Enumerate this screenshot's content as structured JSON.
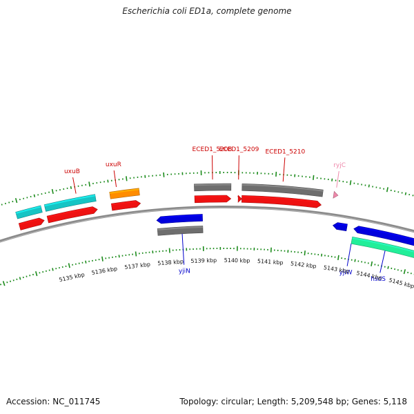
{
  "title": "Escherichia coli ED1a, complete genome",
  "footer": {
    "accession": "Accession: NC_011745",
    "summary": "Topology: circular; Length: 5,209,548 bp; Genes: 5,118"
  },
  "colors": {
    "backbone": "#8a8a8a",
    "tick": "#1a8a1a",
    "forward_label": "#cc0000",
    "reverse_label": "#0000cc",
    "rna_label": "#ee88aa"
  },
  "scale": {
    "unit": "kbp",
    "labels": [
      "5135 kbp",
      "5136 kbp",
      "5137 kbp",
      "5138 kbp",
      "5139 kbp",
      "5140 kbp",
      "5141 kbp",
      "5142 kbp",
      "5143 kbp",
      "5144 kbp",
      "5145 kbp"
    ]
  },
  "gene_labels": {
    "uxuB": "uxuB",
    "uxuR": "uxuR",
    "eced1_5208": "ECED1_5208",
    "eced1_5209": "ECED1_5209",
    "eced1_5210": "ECED1_5210",
    "ryjC": "ryjC",
    "yjiN": "yjiN",
    "yjiW": "yjiW",
    "hsdS": "hsdS"
  },
  "features": [
    {
      "lane": "fwd_outer",
      "start": 5133.9,
      "end": 5134.6,
      "color": "#17c4c4",
      "arrow": false
    },
    {
      "lane": "fwd_outer",
      "start": 5134.7,
      "end": 5136.1,
      "color": "#17c4c4",
      "arrow": false
    },
    {
      "lane": "fwd_outer",
      "start": 5136.5,
      "end": 5137.3,
      "color": "#ff8c00",
      "arrow": false
    },
    {
      "lane": "fwd_outer",
      "start": 5138.8,
      "end": 5139.8,
      "color": "#6e6e6e",
      "arrow": false
    },
    {
      "lane": "fwd_outer",
      "start": 5140.1,
      "end": 5142.3,
      "color": "#6e6e6e",
      "arrow": false
    },
    {
      "lane": "fwd_outer",
      "start": 5142.6,
      "end": 5142.72,
      "color": "#ee88aa",
      "arrow": true
    },
    {
      "lane": "fwd_inner",
      "start": 5133.9,
      "end": 5134.6,
      "color": "#ee1111",
      "arrow": true
    },
    {
      "lane": "fwd_inner",
      "start": 5134.7,
      "end": 5136.1,
      "color": "#ee1111",
      "arrow": true
    },
    {
      "lane": "fwd_inner",
      "start": 5136.5,
      "end": 5137.3,
      "color": "#ee1111",
      "arrow": true
    },
    {
      "lane": "fwd_inner",
      "start": 5138.8,
      "end": 5139.8,
      "color": "#ee1111",
      "arrow": true
    },
    {
      "lane": "fwd_inner",
      "start": 5140.0,
      "end": 5140.1,
      "color": "#ee1111",
      "arrow": true
    },
    {
      "lane": "fwd_inner",
      "start": 5140.1,
      "end": 5142.3,
      "color": "#ee1111",
      "arrow": true
    },
    {
      "lane": "rev_inner",
      "start": 5137.7,
      "end": 5139.0,
      "color": "#0000dd",
      "arrow": true
    },
    {
      "lane": "rev_inner",
      "start": 5142.7,
      "end": 5143.1,
      "color": "#0000dd",
      "arrow": true
    },
    {
      "lane": "rev_inner",
      "start": 5143.3,
      "end": 5145.1,
      "color": "#0000dd",
      "arrow": true
    },
    {
      "lane": "rev_inner",
      "start": 5145.2,
      "end": 5146.2,
      "color": "#0000dd",
      "arrow": true
    },
    {
      "lane": "rev_outer",
      "start": 5137.7,
      "end": 5139.0,
      "color": "#6e6e6e",
      "arrow": false
    },
    {
      "lane": "rev_outer",
      "start": 5143.3,
      "end": 5146.2,
      "color": "#22ee99",
      "arrow": false
    }
  ],
  "labelled_genes": [
    {
      "key": "uxuB",
      "pos": 5135.6,
      "side": "above",
      "kind": "forward_label"
    },
    {
      "key": "uxuR",
      "pos": 5136.7,
      "side": "above",
      "kind": "forward_label"
    },
    {
      "key": "eced1_5208",
      "pos": 5139.3,
      "side": "above",
      "kind": "forward_label"
    },
    {
      "key": "eced1_5209",
      "pos": 5140.0,
      "side": "above",
      "kind": "forward_label"
    },
    {
      "key": "eced1_5210",
      "pos": 5141.2,
      "side": "above",
      "kind": "forward_label"
    },
    {
      "key": "ryjC",
      "pos": 5142.65,
      "side": "above",
      "kind": "rna_label"
    },
    {
      "key": "yjiN",
      "pos": 5138.4,
      "side": "below",
      "kind": "reverse_label"
    },
    {
      "key": "yjiW",
      "pos": 5143.3,
      "side": "below",
      "kind": "reverse_label"
    },
    {
      "key": "hsdS",
      "pos": 5144.3,
      "side": "below",
      "kind": "reverse_label"
    }
  ]
}
